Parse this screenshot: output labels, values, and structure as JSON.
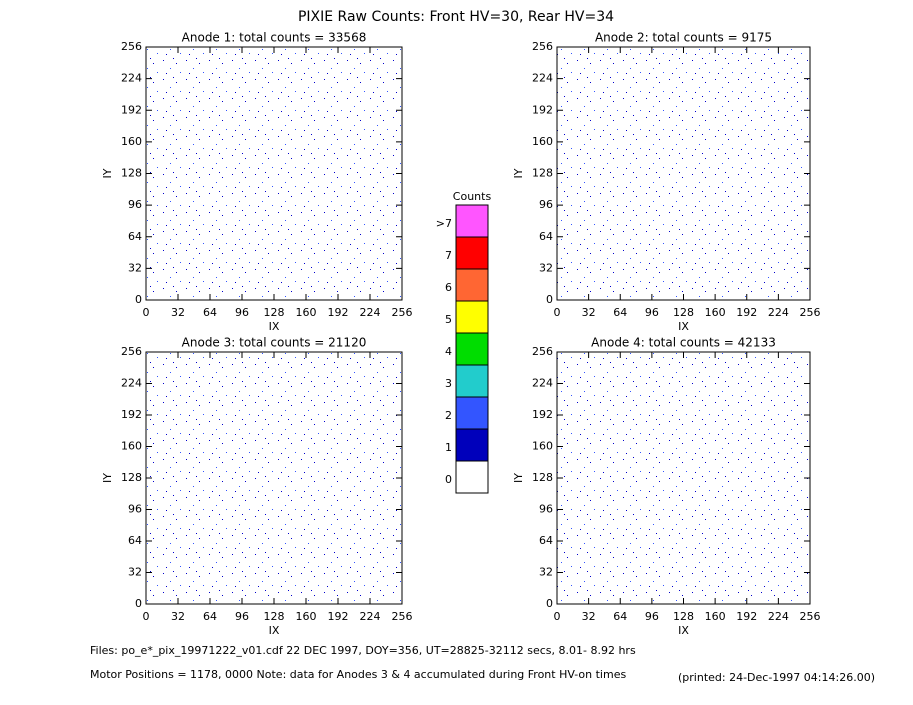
{
  "title": "PIXIE Raw Counts:  Front HV=30, Rear HV=34",
  "chart_data": [
    {
      "type": "heatmap",
      "title": "Anode 1: total counts = 33568",
      "xlabel": "IX",
      "ylabel": "IY",
      "xlim": [
        0,
        256
      ],
      "ylim": [
        0,
        256
      ],
      "xticks": [
        0,
        32,
        64,
        96,
        128,
        160,
        192,
        224,
        256
      ],
      "yticks": [
        0,
        32,
        64,
        96,
        128,
        160,
        192,
        224,
        256
      ]
    },
    {
      "type": "heatmap",
      "title": "Anode 2: total counts = 9175",
      "xlabel": "IX",
      "ylabel": "IY",
      "xlim": [
        0,
        256
      ],
      "ylim": [
        0,
        256
      ],
      "xticks": [
        0,
        32,
        64,
        96,
        128,
        160,
        192,
        224,
        256
      ],
      "yticks": [
        0,
        32,
        64,
        96,
        128,
        160,
        192,
        224,
        256
      ]
    },
    {
      "type": "heatmap",
      "title": "Anode 3: total counts = 21120",
      "xlabel": "IX",
      "ylabel": "IY",
      "xlim": [
        0,
        256
      ],
      "ylim": [
        0,
        256
      ],
      "xticks": [
        0,
        32,
        64,
        96,
        128,
        160,
        192,
        224,
        256
      ],
      "yticks": [
        0,
        32,
        64,
        96,
        128,
        160,
        192,
        224,
        256
      ]
    },
    {
      "type": "heatmap",
      "title": "Anode 4: total counts = 42133",
      "xlabel": "IX",
      "ylabel": "IY",
      "xlim": [
        0,
        256
      ],
      "ylim": [
        0,
        256
      ],
      "xticks": [
        0,
        32,
        64,
        96,
        128,
        160,
        192,
        224,
        256
      ],
      "yticks": [
        0,
        32,
        64,
        96,
        128,
        160,
        192,
        224,
        256
      ]
    }
  ],
  "colorbar": {
    "title": "Counts",
    "labels": [
      ">7",
      "7",
      "6",
      "5",
      "4",
      "3",
      "2",
      "1",
      "0"
    ],
    "colors": [
      "#ff55ff",
      "#ff0000",
      "#ff6633",
      "#ffff00",
      "#00dd00",
      "#22cccc",
      "#3355ff",
      "#0000bb",
      "#ffffff"
    ]
  },
  "footer": {
    "files": "Files: po_e*_pix_19971222_v01.cdf    22 DEC 1997, DOY=356, UT=28825-32112 secs,  8.01- 8.92 hrs",
    "motor": "Motor Positions = 1178, 0000    Note: data for Anodes 3 & 4 accumulated during Front HV-on times",
    "printed": "(printed: 24-Dec-1997 04:14:26.00)"
  }
}
